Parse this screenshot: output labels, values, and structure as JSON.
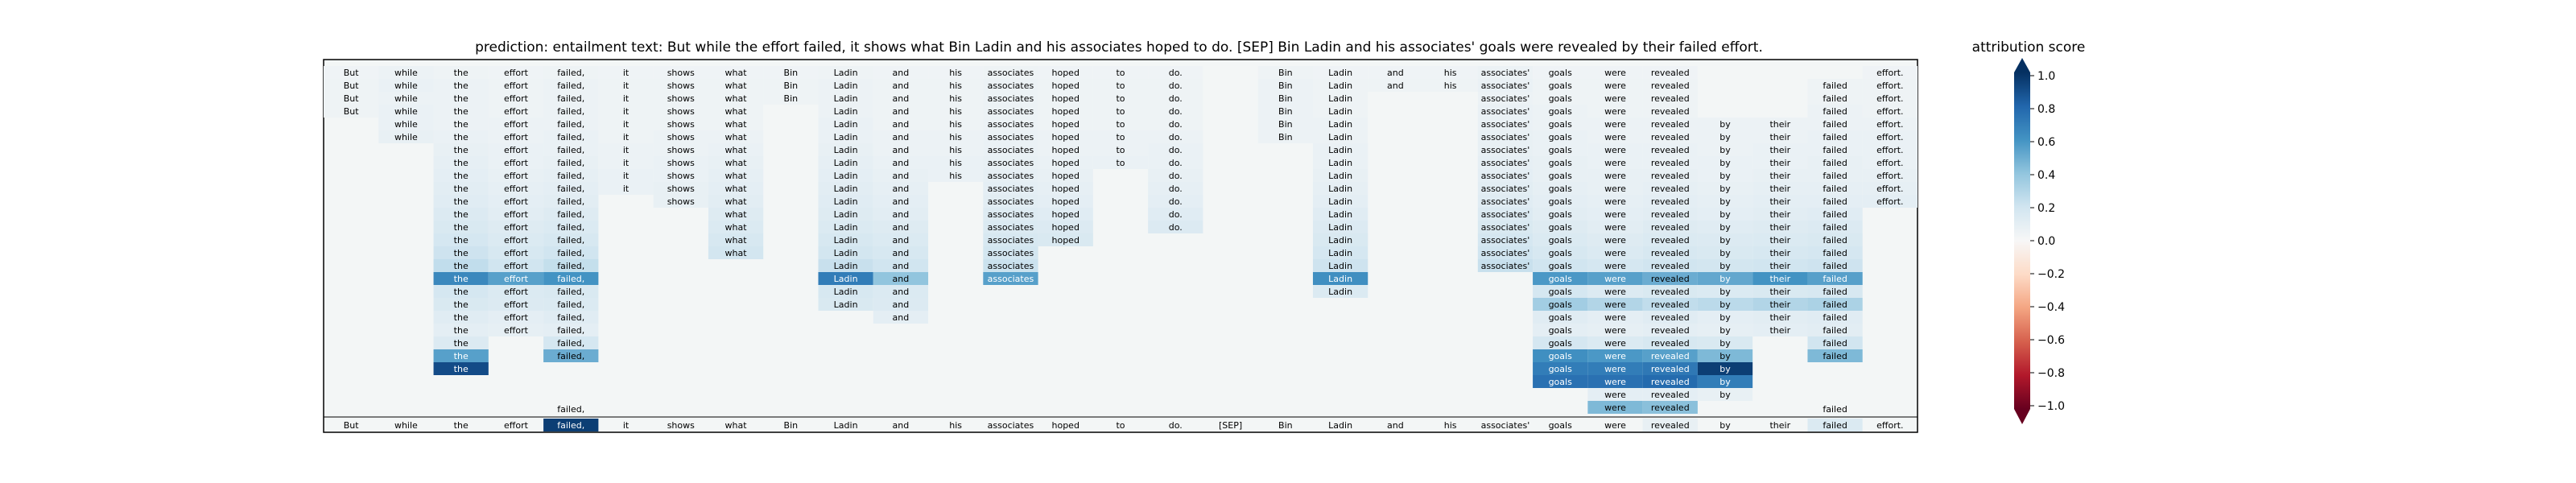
{
  "chart_data": {
    "type": "heatmap",
    "title": "prediction:  entailment     text:  But while the effort failed, it shows what Bin Ladin and his associates hoped to do. [SEP] Bin Ladin and his associates' goals were revealed by their failed effort.",
    "colorbar": {
      "title": "attribution score",
      "min": -1.0,
      "max": 1.0,
      "ticks": [
        "1.0",
        "0.8",
        "0.6",
        "0.4",
        "0.2",
        "0.0",
        "−0.2",
        "−0.4",
        "−0.6",
        "−0.8",
        "−1.0"
      ],
      "colormap": "RdBu"
    },
    "tokens": [
      "But",
      "while",
      "the",
      "effort",
      "failed,",
      "it",
      "shows",
      "what",
      "Bin",
      "Ladin",
      "and",
      "his",
      "associates",
      "hoped",
      "to",
      "do.",
      "[SEP]",
      "Bin",
      "Ladin",
      "and",
      "his",
      "associates'",
      "goals",
      "were",
      "revealed",
      "by",
      "their",
      "failed",
      "effort."
    ],
    "highlight_row": [
      0,
      0,
      0,
      0,
      0.95,
      0,
      0,
      0,
      0,
      0,
      0,
      0,
      0,
      0,
      0,
      0,
      0,
      0,
      0,
      0,
      0,
      0,
      0,
      0,
      0.08,
      0,
      0,
      0.15,
      0
    ],
    "present": [
      [
        0,
        0,
        0,
        0
      ],
      [
        0,
        0,
        0,
        0
      ],
      [
        0,
        0,
        0,
        0
      ],
      [
        0,
        0,
        0,
        0
      ],
      [
        1,
        1,
        1,
        1,
        1,
        1,
        1,
        1,
        1,
        1,
        1,
        1,
        1,
        1,
        1,
        1,
        1,
        1,
        1,
        1,
        1,
        1,
        1,
        1,
        1,
        1,
        1,
        1,
        1,
        1
      ],
      [
        0,
        0,
        0,
        0,
        0,
        0,
        0,
        0,
        0,
        0,
        0,
        0,
        0
      ],
      [
        0,
        0,
        0,
        0,
        0,
        0,
        0,
        0,
        0,
        0,
        0,
        0,
        0,
        0
      ],
      [
        0,
        0,
        0,
        0,
        0,
        0,
        0,
        0,
        0,
        0,
        0,
        0,
        0,
        0
      ],
      [
        0,
        0,
        0
      ],
      [
        0,
        0,
        0,
        0,
        0,
        0,
        0,
        0,
        0,
        0,
        0,
        0,
        0,
        0,
        0,
        0,
        0,
        0,
        0
      ],
      [
        0,
        0,
        0,
        0,
        0,
        0,
        0,
        0,
        0,
        0,
        0,
        0,
        0,
        0,
        0,
        0,
        0,
        0
      ],
      [
        0,
        0,
        0,
        0,
        0,
        0
      ],
      [
        0,
        0,
        0,
        0,
        0,
        0,
        0,
        0,
        0,
        0,
        0,
        0,
        0,
        0,
        0
      ],
      [
        0,
        0,
        0,
        0,
        0,
        0,
        0,
        0,
        0,
        0,
        0,
        0
      ],
      [
        0,
        0,
        0,
        0,
        0,
        0,
        0,
        0,
        0,
        0
      ],
      [
        0,
        0,
        0,
        0,
        0,
        0,
        0,
        0,
        0,
        0,
        0,
        0
      ],
      [],
      [
        0,
        0,
        0,
        0,
        0,
        0
      ],
      [
        0,
        0,
        0,
        0,
        0,
        0,
        0,
        0,
        0,
        0,
        0,
        0,
        0,
        0,
        0,
        0
      ],
      [
        0
      ],
      [
        0,
        0
      ],
      [
        0,
        0,
        0,
        0,
        0,
        0,
        0,
        0,
        0,
        0,
        0,
        0,
        0,
        0,
        0
      ],
      [
        0,
        0,
        0,
        0,
        0,
        0,
        0,
        0,
        0,
        0,
        0,
        0,
        0,
        0,
        0,
        0,
        0,
        0,
        0,
        0,
        0,
        0,
        0,
        0
      ],
      [
        0,
        0,
        0,
        0,
        0,
        0,
        0,
        0,
        0,
        0,
        0,
        0,
        0,
        0,
        0,
        0,
        0,
        0,
        0,
        0,
        0,
        0,
        0,
        0,
        0,
        0
      ],
      [
        0,
        0,
        0,
        0,
        0,
        0,
        0,
        0,
        0,
        0,
        0,
        0,
        0,
        0,
        0,
        0,
        0,
        0,
        0,
        0,
        0,
        0,
        0,
        0,
        0,
        0,
        0
      ],
      [
        0,
        0,
        0,
        0,
        0,
        0,
        0,
        0,
        0,
        0,
        0,
        0,
        0,
        0,
        0,
        0,
        0,
        0,
        0,
        0,
        0,
        0,
        0,
        0,
        0
      ],
      [
        0,
        0,
        0,
        0,
        0,
        0,
        0,
        0,
        0,
        0,
        0,
        0,
        0,
        0,
        0,
        0,
        0,
        0,
        0,
        0,
        0
      ],
      [
        0,
        0,
        0,
        0,
        0,
        0,
        0,
        0,
        0,
        0,
        0,
        0,
        0,
        0,
        0,
        0,
        0,
        0,
        0,
        0,
        0,
        0,
        0,
        0,
        0,
        0,
        0
      ],
      [
        0,
        0,
        0,
        0,
        0,
        0,
        0,
        0,
        0,
        0,
        0,
        0
      ]
    ],
    "rows": [
      [
        0.04,
        0.06,
        0.05,
        0.04,
        0.05,
        0.04,
        0.04,
        0.04,
        0.04,
        0.05,
        0.04,
        0.04,
        0.05,
        0.04,
        0.04,
        0.04,
        null,
        0.05,
        0.04,
        0.04,
        0.04,
        0.06,
        0.04,
        0.04,
        0.04,
        null,
        null,
        null,
        0.04
      ],
      [
        0.05,
        0.07,
        0.06,
        0.05,
        0.06,
        0.05,
        0.05,
        0.05,
        0.05,
        0.06,
        0.05,
        0.05,
        0.06,
        0.05,
        0.05,
        0.05,
        null,
        0.06,
        0.05,
        0.05,
        0.05,
        0.07,
        0.05,
        0.05,
        0.05,
        null,
        null,
        0.05,
        0.05
      ],
      [
        0.05,
        0.06,
        0.06,
        0.05,
        0.06,
        0.05,
        0.05,
        0.05,
        0.05,
        0.06,
        0.05,
        0.05,
        0.06,
        0.05,
        0.05,
        0.05,
        null,
        0.06,
        0.05,
        null,
        null,
        0.06,
        0.05,
        0.05,
        0.05,
        null,
        null,
        0.05,
        0.05
      ],
      [
        0.05,
        0.07,
        0.06,
        0.05,
        0.06,
        0.05,
        0.05,
        0.05,
        null,
        0.06,
        0.05,
        0.05,
        0.06,
        0.05,
        0.05,
        0.05,
        null,
        0.06,
        0.05,
        null,
        null,
        0.07,
        0.06,
        0.05,
        0.05,
        null,
        null,
        0.06,
        0.05
      ],
      [
        null,
        0.07,
        0.06,
        0.06,
        0.06,
        0.05,
        0.05,
        0.05,
        null,
        0.07,
        0.05,
        0.05,
        0.06,
        0.05,
        0.05,
        0.05,
        null,
        0.06,
        0.06,
        null,
        null,
        0.07,
        0.06,
        0.06,
        0.06,
        0.06,
        0.06,
        0.06,
        0.06
      ],
      [
        null,
        0.08,
        0.07,
        0.06,
        0.07,
        0.05,
        0.06,
        0.06,
        null,
        0.07,
        0.06,
        0.06,
        0.07,
        0.06,
        0.06,
        0.06,
        null,
        0.06,
        0.06,
        null,
        null,
        0.08,
        0.07,
        0.06,
        0.06,
        0.06,
        0.06,
        0.07,
        0.07
      ],
      [
        null,
        null,
        0.08,
        0.07,
        0.07,
        0.06,
        0.06,
        0.07,
        null,
        0.08,
        0.06,
        0.06,
        0.07,
        0.06,
        0.06,
        0.07,
        null,
        null,
        0.07,
        null,
        null,
        0.08,
        0.07,
        0.07,
        0.07,
        0.06,
        0.07,
        0.07,
        0.07
      ],
      [
        null,
        null,
        0.09,
        0.07,
        0.08,
        0.06,
        0.07,
        0.08,
        null,
        0.09,
        0.07,
        0.07,
        0.08,
        0.07,
        0.07,
        0.07,
        null,
        null,
        0.07,
        null,
        null,
        0.09,
        0.08,
        0.07,
        0.07,
        0.07,
        0.07,
        0.08,
        0.07
      ],
      [
        null,
        null,
        0.1,
        0.08,
        0.09,
        0.07,
        0.07,
        0.09,
        null,
        0.1,
        0.08,
        0.07,
        0.09,
        0.08,
        null,
        0.08,
        null,
        null,
        0.08,
        null,
        null,
        0.1,
        0.08,
        0.08,
        0.08,
        0.07,
        0.08,
        0.08,
        0.08
      ],
      [
        null,
        null,
        0.11,
        0.09,
        0.1,
        0.07,
        0.08,
        0.1,
        null,
        0.11,
        0.09,
        null,
        0.1,
        0.09,
        null,
        0.09,
        null,
        null,
        0.09,
        null,
        null,
        0.11,
        0.09,
        0.08,
        0.09,
        0.08,
        0.09,
        0.09,
        0.09
      ],
      [
        null,
        null,
        0.12,
        0.1,
        0.11,
        null,
        0.08,
        0.11,
        null,
        0.12,
        0.1,
        null,
        0.11,
        0.1,
        null,
        0.1,
        null,
        null,
        0.1,
        null,
        null,
        0.12,
        0.1,
        0.09,
        0.1,
        0.09,
        0.1,
        0.1,
        0.1
      ],
      [
        null,
        null,
        0.14,
        0.11,
        0.13,
        null,
        null,
        0.13,
        null,
        0.13,
        0.11,
        null,
        0.13,
        0.12,
        null,
        0.12,
        null,
        null,
        0.12,
        null,
        null,
        0.14,
        0.11,
        0.1,
        0.11,
        0.1,
        0.11,
        0.12,
        null
      ],
      [
        null,
        null,
        0.16,
        0.13,
        0.15,
        null,
        null,
        0.15,
        null,
        0.15,
        0.13,
        null,
        0.15,
        0.14,
        null,
        0.14,
        null,
        null,
        0.14,
        null,
        null,
        0.16,
        0.13,
        0.11,
        0.13,
        0.12,
        0.13,
        0.14,
        null
      ],
      [
        null,
        null,
        0.18,
        0.15,
        0.17,
        null,
        null,
        0.17,
        null,
        0.17,
        0.15,
        null,
        0.17,
        0.16,
        null,
        null,
        null,
        null,
        0.16,
        null,
        null,
        0.18,
        0.15,
        0.13,
        0.15,
        0.14,
        0.15,
        0.16,
        null
      ],
      [
        null,
        null,
        0.21,
        0.17,
        0.2,
        null,
        null,
        0.19,
        null,
        0.19,
        0.17,
        null,
        0.19,
        null,
        null,
        null,
        null,
        null,
        0.18,
        null,
        null,
        0.2,
        0.17,
        0.15,
        0.17,
        0.16,
        0.17,
        0.18,
        null
      ],
      [
        null,
        null,
        0.25,
        0.2,
        0.24,
        null,
        null,
        null,
        null,
        0.23,
        0.2,
        null,
        0.22,
        null,
        null,
        null,
        null,
        null,
        0.21,
        null,
        null,
        0.23,
        0.2,
        0.18,
        0.2,
        0.19,
        0.2,
        0.21,
        null
      ],
      [
        null,
        null,
        0.65,
        0.55,
        0.6,
        null,
        null,
        null,
        null,
        0.7,
        0.4,
        null,
        0.55,
        null,
        null,
        null,
        null,
        null,
        0.62,
        null,
        null,
        null,
        0.58,
        0.55,
        0.5,
        0.52,
        0.6,
        0.55,
        null
      ],
      [
        null,
        null,
        0.18,
        0.15,
        0.16,
        null,
        null,
        null,
        null,
        0.17,
        0.15,
        null,
        null,
        null,
        null,
        null,
        null,
        null,
        0.15,
        null,
        null,
        null,
        0.18,
        0.14,
        0.16,
        0.15,
        0.16,
        0.17,
        null
      ],
      [
        null,
        null,
        0.16,
        0.14,
        0.15,
        null,
        null,
        null,
        null,
        0.16,
        0.14,
        null,
        null,
        null,
        null,
        null,
        null,
        null,
        null,
        null,
        null,
        null,
        0.35,
        0.3,
        0.25,
        0.27,
        0.3,
        0.32,
        null
      ],
      [
        null,
        null,
        0.12,
        0.1,
        0.12,
        null,
        null,
        null,
        null,
        null,
        0.1,
        null,
        null,
        null,
        null,
        null,
        null,
        null,
        null,
        null,
        null,
        null,
        0.12,
        0.1,
        0.12,
        0.1,
        0.11,
        0.12,
        null
      ],
      [
        null,
        null,
        0.1,
        0.09,
        0.1,
        null,
        null,
        null,
        null,
        null,
        null,
        null,
        null,
        null,
        null,
        null,
        null,
        null,
        null,
        null,
        null,
        null,
        0.1,
        0.09,
        0.1,
        0.09,
        0.1,
        0.11,
        null
      ],
      [
        null,
        null,
        0.14,
        null,
        0.18,
        null,
        null,
        null,
        null,
        null,
        null,
        null,
        null,
        null,
        null,
        null,
        null,
        null,
        null,
        null,
        null,
        null,
        0.18,
        0.15,
        0.17,
        0.16,
        null,
        0.2,
        null
      ],
      [
        null,
        null,
        0.55,
        null,
        0.5,
        null,
        null,
        null,
        null,
        null,
        null,
        null,
        null,
        null,
        null,
        null,
        null,
        null,
        null,
        null,
        null,
        null,
        0.62,
        0.58,
        0.55,
        0.45,
        null,
        0.45,
        null
      ],
      [
        null,
        null,
        0.9,
        null,
        null,
        null,
        null,
        null,
        null,
        null,
        null,
        null,
        null,
        null,
        null,
        null,
        null,
        null,
        null,
        null,
        null,
        null,
        0.7,
        0.7,
        0.72,
        0.95,
        null,
        null,
        null
      ],
      [
        null,
        null,
        null,
        null,
        null,
        null,
        null,
        null,
        null,
        null,
        null,
        null,
        null,
        null,
        null,
        null,
        null,
        null,
        null,
        null,
        null,
        null,
        0.75,
        0.75,
        0.78,
        0.7,
        null,
        null,
        null
      ],
      [
        null,
        null,
        null,
        null,
        null,
        null,
        null,
        null,
        null,
        null,
        null,
        null,
        null,
        null,
        null,
        null,
        null,
        null,
        null,
        null,
        null,
        null,
        null,
        0.1,
        0.1,
        0.08,
        null,
        null,
        null
      ],
      [
        null,
        null,
        null,
        null,
        null,
        null,
        null,
        null,
        null,
        null,
        null,
        null,
        null,
        null,
        null,
        null,
        null,
        null,
        null,
        null,
        null,
        null,
        null,
        0.45,
        0.42,
        null,
        null,
        null,
        null
      ]
    ],
    "row_28_failed": [
      4,
      27
    ]
  }
}
